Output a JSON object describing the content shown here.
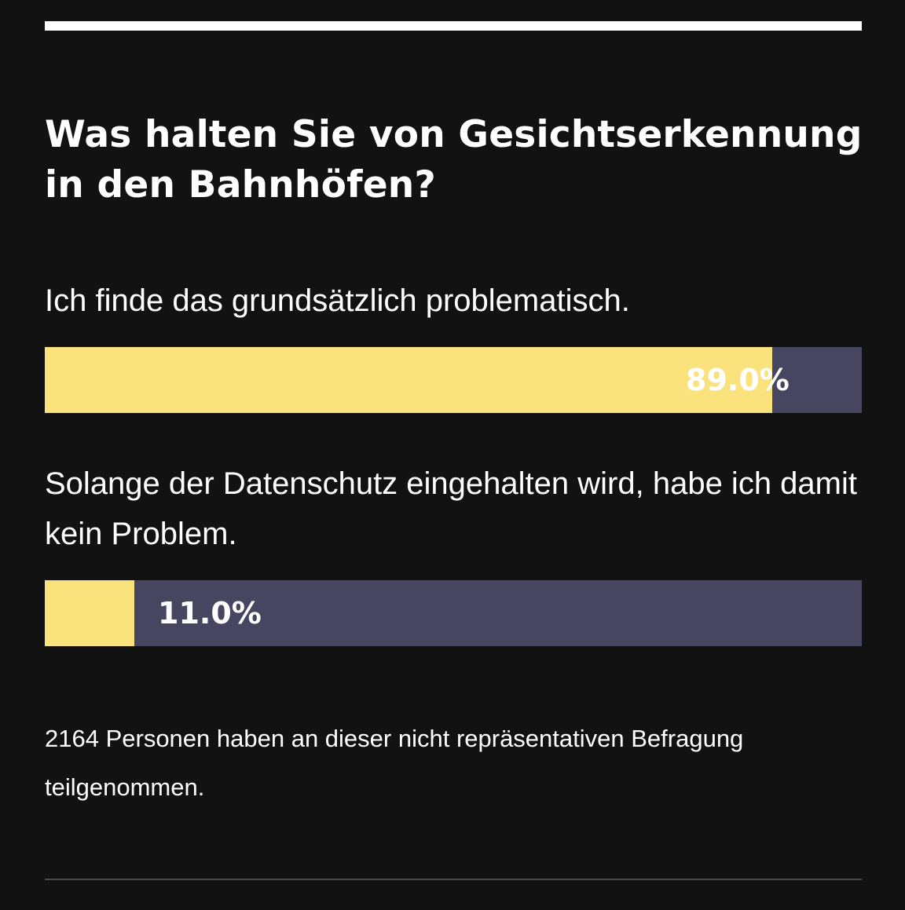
{
  "poll": {
    "question": "Was halten Sie von Gesichtserkennung in den Bahnhöfen?",
    "options": [
      {
        "label": "Ich finde das grundsätzlich problematisch.",
        "percent": 89.0,
        "value_label": "89.0%"
      },
      {
        "label": "Solange der Datenschutz eingehalten wird, habe ich damit kein Problem.",
        "percent": 11.0,
        "value_label": "11.0%"
      }
    ],
    "footnote": "2164 Personen haben an dieser nicht repräsentativen Befragung teilgenommen."
  },
  "colors": {
    "background": "#121212",
    "bar_fill": "#fae27d",
    "bar_track": "#464660",
    "text": "#ffffff"
  }
}
